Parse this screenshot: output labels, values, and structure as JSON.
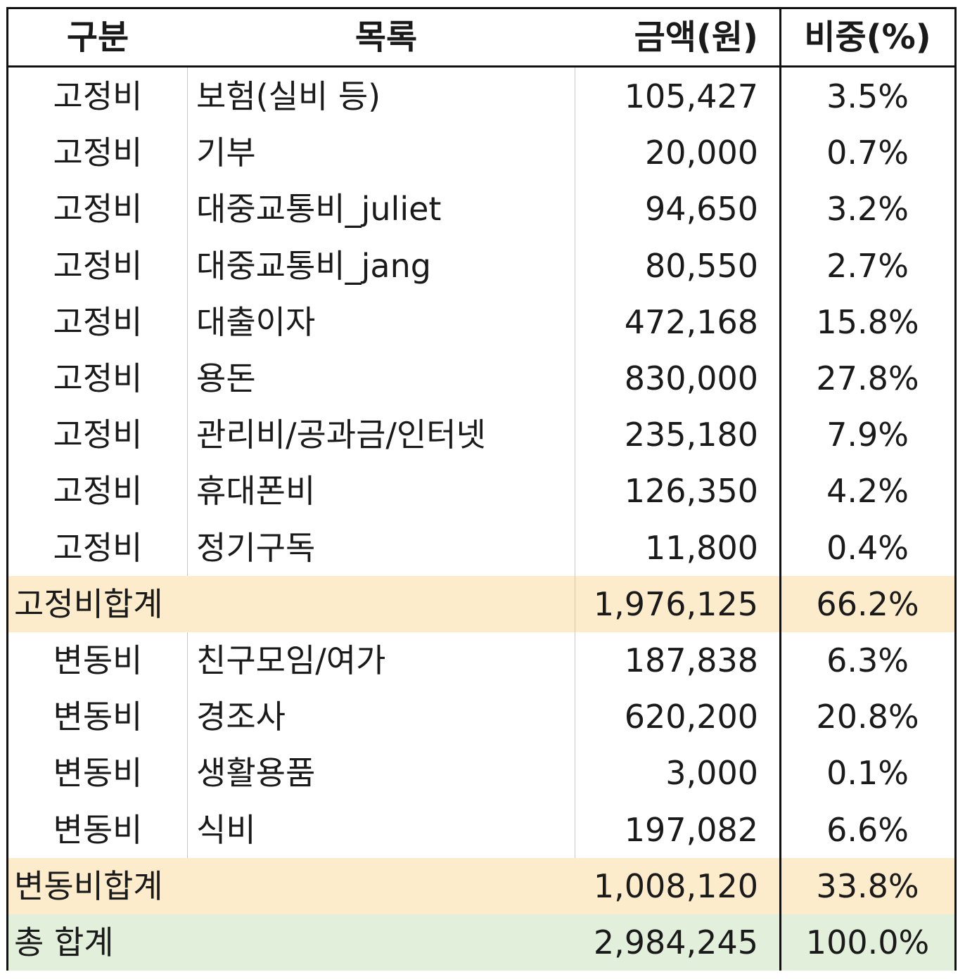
{
  "table": {
    "headers": [
      "구분",
      "목록",
      "금액(원)",
      "비중(%)"
    ],
    "fixed_rows": [
      {
        "category": "고정비",
        "item": "보험(실비 등)",
        "amount": "105,427",
        "share": "3.5%"
      },
      {
        "category": "고정비",
        "item": "기부",
        "amount": "20,000",
        "share": "0.7%"
      },
      {
        "category": "고정비",
        "item": "대중교통비_juliet",
        "amount": "94,650",
        "share": "3.2%"
      },
      {
        "category": "고정비",
        "item": "대중교통비_jang",
        "amount": "80,550",
        "share": "2.7%"
      },
      {
        "category": "고정비",
        "item": "대출이자",
        "amount": "472,168",
        "share": "15.8%"
      },
      {
        "category": "고정비",
        "item": "용돈",
        "amount": "830,000",
        "share": "27.8%"
      },
      {
        "category": "고정비",
        "item": "관리비/공과금/인터넷",
        "amount": "235,180",
        "share": "7.9%"
      },
      {
        "category": "고정비",
        "item": "휴대폰비",
        "amount": "126,350",
        "share": "4.2%"
      },
      {
        "category": "고정비",
        "item": "정기구독",
        "amount": "11,800",
        "share": "0.4%"
      }
    ],
    "fixed_subtotal": {
      "label": "고정비합계",
      "amount": "1,976,125",
      "share": "66.2%"
    },
    "variable_rows": [
      {
        "category": "변동비",
        "item": "친구모임/여가",
        "amount": "187,838",
        "share": "6.3%"
      },
      {
        "category": "변동비",
        "item": "경조사",
        "amount": "620,200",
        "share": "20.8%"
      },
      {
        "category": "변동비",
        "item": "생활용품",
        "amount": "3,000",
        "share": "0.1%"
      },
      {
        "category": "변동비",
        "item": "식비",
        "amount": "197,082",
        "share": "6.6%"
      }
    ],
    "variable_subtotal": {
      "label": "변동비합계",
      "amount": "1,008,120",
      "share": "33.8%"
    },
    "grand_total": {
      "label": "총 합계",
      "amount": "2,984,245",
      "share": "100.0%"
    }
  },
  "colors": {
    "subtotal_bg": "#fdeccb",
    "total_bg": "#e2efda",
    "border": "#111111",
    "gridline": "#c8c8c8"
  }
}
